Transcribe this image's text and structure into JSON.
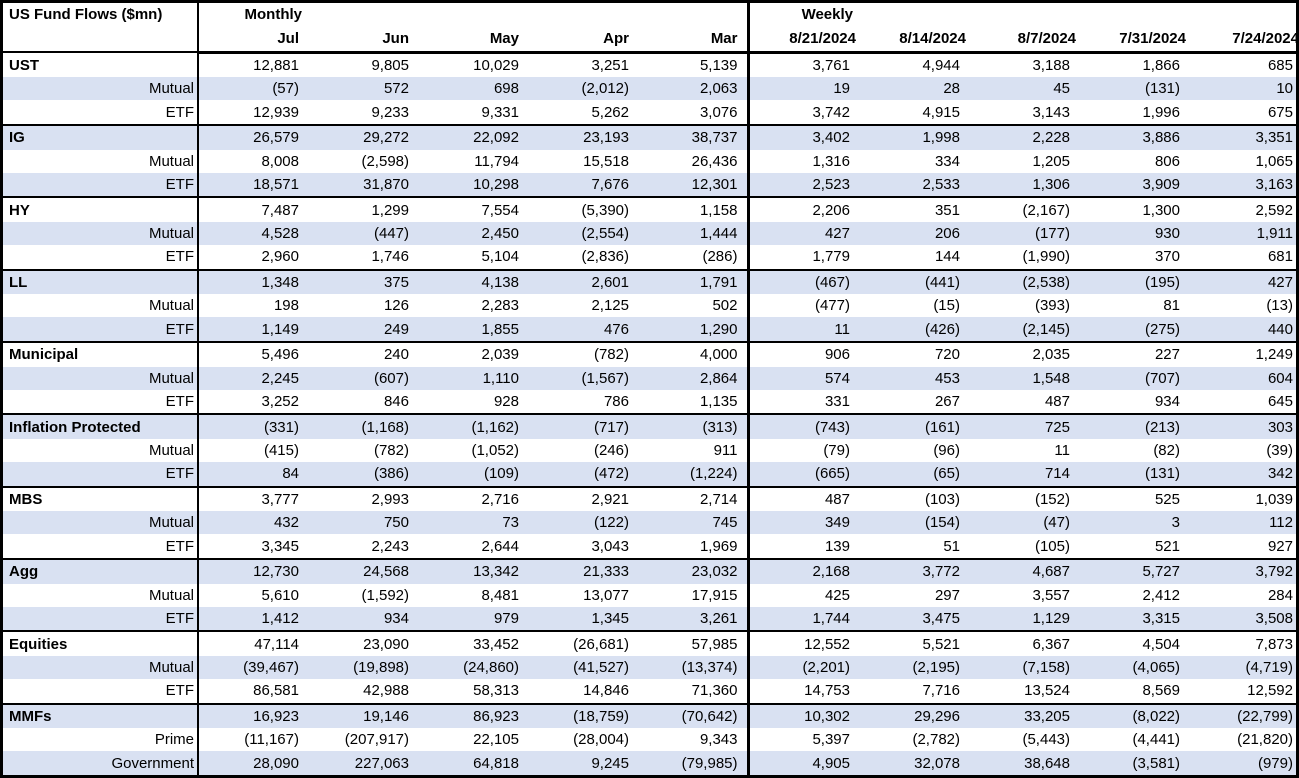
{
  "colors": {
    "row_shade": "#D9E1F2",
    "border": "#000000",
    "text": "#000000",
    "background": "#FFFFFF"
  },
  "chart_data": {
    "type": "table",
    "title": "US Fund Flows ($mn)",
    "column_groups": [
      {
        "label": "Monthly",
        "columns": [
          "Jul",
          "Jun",
          "May",
          "Apr",
          "Mar"
        ]
      },
      {
        "label": "Weekly",
        "columns": [
          "8/21/2024",
          "8/14/2024",
          "8/7/2024",
          "7/31/2024",
          "7/24/2024"
        ]
      }
    ],
    "sections": [
      {
        "category": "UST",
        "rows": [
          {
            "label": "UST",
            "monthly": [
              "12,881",
              "9,805",
              "10,029",
              "3,251",
              "5,139"
            ],
            "weekly": [
              "3,761",
              "4,944",
              "3,188",
              "1,866",
              "685"
            ]
          },
          {
            "label": "Mutual",
            "monthly": [
              "(57)",
              "572",
              "698",
              "(2,012)",
              "2,063"
            ],
            "weekly": [
              "19",
              "28",
              "45",
              "(131)",
              "10"
            ]
          },
          {
            "label": "ETF",
            "monthly": [
              "12,939",
              "9,233",
              "9,331",
              "5,262",
              "3,076"
            ],
            "weekly": [
              "3,742",
              "4,915",
              "3,143",
              "1,996",
              "675"
            ]
          }
        ]
      },
      {
        "category": "IG",
        "rows": [
          {
            "label": "IG",
            "monthly": [
              "26,579",
              "29,272",
              "22,092",
              "23,193",
              "38,737"
            ],
            "weekly": [
              "3,402",
              "1,998",
              "2,228",
              "3,886",
              "3,351"
            ]
          },
          {
            "label": "Mutual",
            "monthly": [
              "8,008",
              "(2,598)",
              "11,794",
              "15,518",
              "26,436"
            ],
            "weekly": [
              "1,316",
              "334",
              "1,205",
              "806",
              "1,065"
            ]
          },
          {
            "label": "ETF",
            "monthly": [
              "18,571",
              "31,870",
              "10,298",
              "7,676",
              "12,301"
            ],
            "weekly": [
              "2,523",
              "2,533",
              "1,306",
              "3,909",
              "3,163"
            ]
          }
        ]
      },
      {
        "category": "HY",
        "rows": [
          {
            "label": "HY",
            "monthly": [
              "7,487",
              "1,299",
              "7,554",
              "(5,390)",
              "1,158"
            ],
            "weekly": [
              "2,206",
              "351",
              "(2,167)",
              "1,300",
              "2,592"
            ]
          },
          {
            "label": "Mutual",
            "monthly": [
              "4,528",
              "(447)",
              "2,450",
              "(2,554)",
              "1,444"
            ],
            "weekly": [
              "427",
              "206",
              "(177)",
              "930",
              "1,911"
            ]
          },
          {
            "label": "ETF",
            "monthly": [
              "2,960",
              "1,746",
              "5,104",
              "(2,836)",
              "(286)"
            ],
            "weekly": [
              "1,779",
              "144",
              "(1,990)",
              "370",
              "681"
            ]
          }
        ]
      },
      {
        "category": "LL",
        "rows": [
          {
            "label": "LL",
            "monthly": [
              "1,348",
              "375",
              "4,138",
              "2,601",
              "1,791"
            ],
            "weekly": [
              "(467)",
              "(441)",
              "(2,538)",
              "(195)",
              "427"
            ]
          },
          {
            "label": "Mutual",
            "monthly": [
              "198",
              "126",
              "2,283",
              "2,125",
              "502"
            ],
            "weekly": [
              "(477)",
              "(15)",
              "(393)",
              "81",
              "(13)"
            ]
          },
          {
            "label": "ETF",
            "monthly": [
              "1,149",
              "249",
              "1,855",
              "476",
              "1,290"
            ],
            "weekly": [
              "11",
              "(426)",
              "(2,145)",
              "(275)",
              "440"
            ]
          }
        ]
      },
      {
        "category": "Municipal",
        "rows": [
          {
            "label": "Municipal",
            "monthly": [
              "5,496",
              "240",
              "2,039",
              "(782)",
              "4,000"
            ],
            "weekly": [
              "906",
              "720",
              "2,035",
              "227",
              "1,249"
            ]
          },
          {
            "label": "Mutual",
            "monthly": [
              "2,245",
              "(607)",
              "1,110",
              "(1,567)",
              "2,864"
            ],
            "weekly": [
              "574",
              "453",
              "1,548",
              "(707)",
              "604"
            ]
          },
          {
            "label": "ETF",
            "monthly": [
              "3,252",
              "846",
              "928",
              "786",
              "1,135"
            ],
            "weekly": [
              "331",
              "267",
              "487",
              "934",
              "645"
            ]
          }
        ]
      },
      {
        "category": "Inflation Protected",
        "rows": [
          {
            "label": "Inflation Protected",
            "monthly": [
              "(331)",
              "(1,168)",
              "(1,162)",
              "(717)",
              "(313)"
            ],
            "weekly": [
              "(743)",
              "(161)",
              "725",
              "(213)",
              "303"
            ]
          },
          {
            "label": "Mutual",
            "monthly": [
              "(415)",
              "(782)",
              "(1,052)",
              "(246)",
              "911"
            ],
            "weekly": [
              "(79)",
              "(96)",
              "11",
              "(82)",
              "(39)"
            ]
          },
          {
            "label": "ETF",
            "monthly": [
              "84",
              "(386)",
              "(109)",
              "(472)",
              "(1,224)"
            ],
            "weekly": [
              "(665)",
              "(65)",
              "714",
              "(131)",
              "342"
            ]
          }
        ]
      },
      {
        "category": "MBS",
        "rows": [
          {
            "label": "MBS",
            "monthly": [
              "3,777",
              "2,993",
              "2,716",
              "2,921",
              "2,714"
            ],
            "weekly": [
              "487",
              "(103)",
              "(152)",
              "525",
              "1,039"
            ]
          },
          {
            "label": "Mutual",
            "monthly": [
              "432",
              "750",
              "73",
              "(122)",
              "745"
            ],
            "weekly": [
              "349",
              "(154)",
              "(47)",
              "3",
              "112"
            ]
          },
          {
            "label": "ETF",
            "monthly": [
              "3,345",
              "2,243",
              "2,644",
              "3,043",
              "1,969"
            ],
            "weekly": [
              "139",
              "51",
              "(105)",
              "521",
              "927"
            ]
          }
        ]
      },
      {
        "category": "Agg",
        "rows": [
          {
            "label": "Agg",
            "monthly": [
              "12,730",
              "24,568",
              "13,342",
              "21,333",
              "23,032"
            ],
            "weekly": [
              "2,168",
              "3,772",
              "4,687",
              "5,727",
              "3,792"
            ]
          },
          {
            "label": "Mutual",
            "monthly": [
              "5,610",
              "(1,592)",
              "8,481",
              "13,077",
              "17,915"
            ],
            "weekly": [
              "425",
              "297",
              "3,557",
              "2,412",
              "284"
            ]
          },
          {
            "label": "ETF",
            "monthly": [
              "1,412",
              "934",
              "979",
              "1,345",
              "3,261"
            ],
            "weekly": [
              "1,744",
              "3,475",
              "1,129",
              "3,315",
              "3,508"
            ]
          }
        ]
      },
      {
        "category": "Equities",
        "rows": [
          {
            "label": "Equities",
            "monthly": [
              "47,114",
              "23,090",
              "33,452",
              "(26,681)",
              "57,985"
            ],
            "weekly": [
              "12,552",
              "5,521",
              "6,367",
              "4,504",
              "7,873"
            ]
          },
          {
            "label": "Mutual",
            "monthly": [
              "(39,467)",
              "(19,898)",
              "(24,860)",
              "(41,527)",
              "(13,374)"
            ],
            "weekly": [
              "(2,201)",
              "(2,195)",
              "(7,158)",
              "(4,065)",
              "(4,719)"
            ]
          },
          {
            "label": "ETF",
            "monthly": [
              "86,581",
              "42,988",
              "58,313",
              "14,846",
              "71,360"
            ],
            "weekly": [
              "14,753",
              "7,716",
              "13,524",
              "8,569",
              "12,592"
            ]
          }
        ]
      },
      {
        "category": "MMFs",
        "rows": [
          {
            "label": "MMFs",
            "monthly": [
              "16,923",
              "19,146",
              "86,923",
              "(18,759)",
              "(70,642)"
            ],
            "weekly": [
              "10,302",
              "29,296",
              "33,205",
              "(8,022)",
              "(22,799)"
            ]
          },
          {
            "label": "Prime",
            "monthly": [
              "(11,167)",
              "(207,917)",
              "22,105",
              "(28,004)",
              "9,343"
            ],
            "weekly": [
              "5,397",
              "(2,782)",
              "(5,443)",
              "(4,441)",
              "(21,820)"
            ]
          },
          {
            "label": "Government",
            "monthly": [
              "28,090",
              "227,063",
              "64,818",
              "9,245",
              "(79,985)"
            ],
            "weekly": [
              "4,905",
              "32,078",
              "38,648",
              "(3,581)",
              "(979)"
            ]
          }
        ]
      }
    ]
  }
}
